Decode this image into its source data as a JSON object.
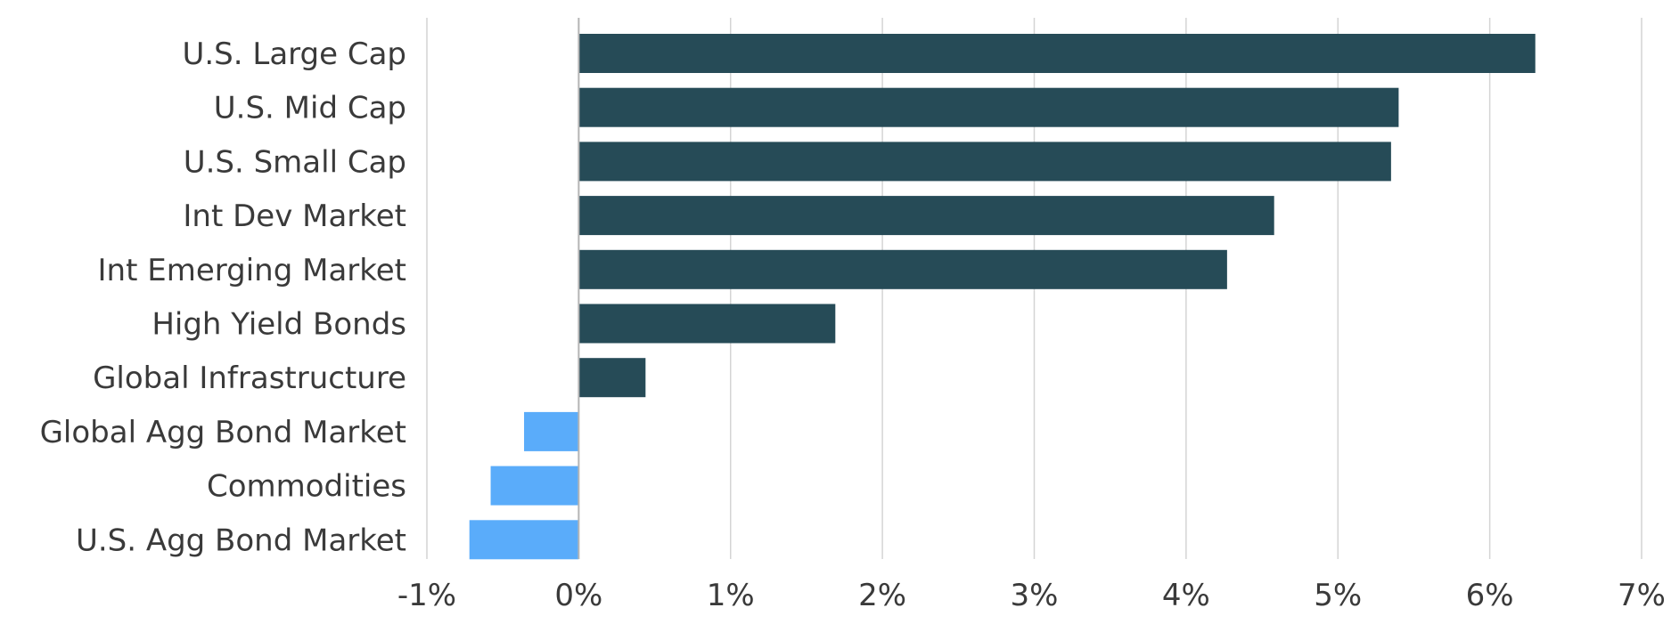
{
  "chart_data": {
    "type": "bar",
    "orientation": "horizontal",
    "categories": [
      "U.S. Large Cap",
      "U.S. Mid Cap",
      "U.S. Small Cap",
      "Int Dev Market",
      "Int Emerging Market",
      "High Yield Bonds",
      "Global Infrastructure",
      "Global Agg Bond Market",
      "Commodities",
      "U.S. Agg Bond Market"
    ],
    "values": [
      6.3,
      5.4,
      5.35,
      4.58,
      4.27,
      1.69,
      0.44,
      -0.36,
      -0.58,
      -0.72
    ],
    "xlim": [
      -1,
      7
    ],
    "x_ticks": [
      -1,
      0,
      1,
      2,
      3,
      4,
      5,
      6,
      7
    ],
    "x_tick_labels": [
      "-1%",
      "0%",
      "1%",
      "2%",
      "3%",
      "4%",
      "5%",
      "6%",
      "7%"
    ],
    "grid": true,
    "colors": {
      "positive": "#264b57",
      "negative": "#5aacfa"
    },
    "title": "",
    "xlabel": "",
    "ylabel": ""
  }
}
